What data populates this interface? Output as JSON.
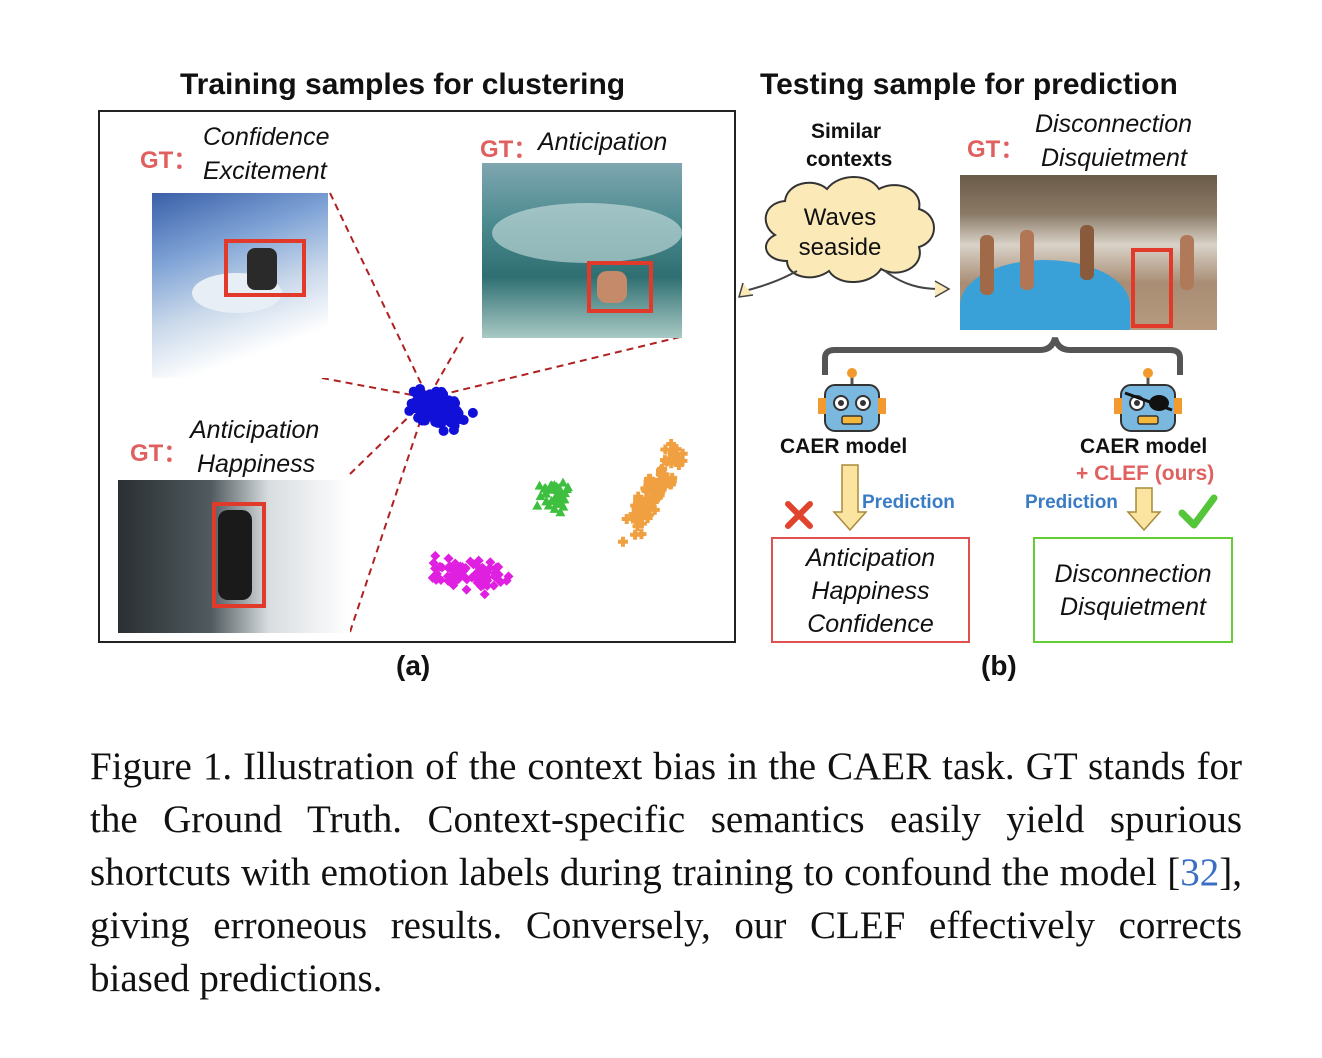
{
  "panel_a": {
    "title": "Training samples for clustering",
    "label": "(a)",
    "samples": [
      {
        "gt_prefix": "GT：",
        "line1": "Confidence",
        "line2": "Excitement"
      },
      {
        "gt_prefix": "GT：",
        "line1": "Anticipation",
        "line2": ""
      },
      {
        "gt_prefix": "GT：",
        "line1": "Anticipation",
        "line2": "Happiness"
      }
    ],
    "cluster_colors": {
      "blue": "#1010d8",
      "green": "#3fbf3f",
      "magenta": "#e020e0",
      "orange": "#f0a040"
    }
  },
  "panel_b": {
    "title": "Testing sample for prediction",
    "label": "(b)",
    "similar_line1": "Similar",
    "similar_line2": "contexts",
    "cloud_line1": "Waves",
    "cloud_line2": "seaside",
    "gt_prefix": "GT：",
    "gt_line1": "Disconnection",
    "gt_line2": "Disquietment",
    "baseline": {
      "name": "CAER model",
      "prediction_label": "Prediction",
      "result": [
        "Anticipation",
        "Happiness",
        "Confidence"
      ],
      "status": "wrong",
      "box_color": "#e05050"
    },
    "ours": {
      "name": "CAER model",
      "suffix": "+ CLEF (ours)",
      "prediction_label": "Prediction",
      "result": [
        "Disconnection",
        "Disquietment"
      ],
      "status": "correct",
      "box_color": "#66cc33"
    }
  },
  "caption": {
    "before_cite": "Figure 1.  Illustration of the context bias in the CAER task.  GT stands for the Ground Truth.  Context-specific semantics easily yield spurious shortcuts with emotion labels during training to confound the model [",
    "cite": "32",
    "after_cite": "], giving erroneous results.  Conversely, our CLEF effectively corrects biased predictions."
  }
}
